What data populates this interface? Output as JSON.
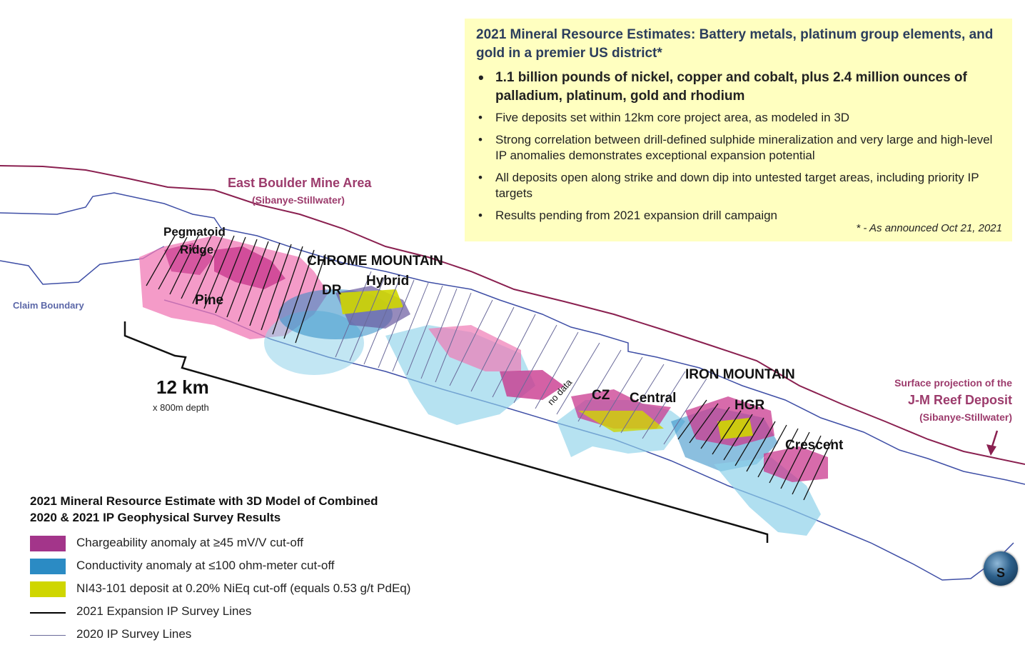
{
  "info_box": {
    "title": "2021 Mineral Resource Estimates:  Battery metals, platinum group elements, and gold in a premier US district*",
    "bullets": [
      {
        "text": "1.1 billion pounds of nickel, copper and cobalt, plus 2.4 million ounces of palladium, platinum, gold and rhodium",
        "emphasis": true
      },
      {
        "text": "Five deposits set within 12km core project area, as modeled in 3D",
        "emphasis": false
      },
      {
        "text": "Strong correlation between drill-defined sulphide mineralization and very large and high-level IP anomalies demonstrates exceptional expansion potential",
        "emphasis": false
      },
      {
        "text": "All deposits open along strike and down dip into untested target areas, including priority IP targets",
        "emphasis": false
      },
      {
        "text": "Results pending from 2021 expansion drill campaign",
        "emphasis": false
      }
    ],
    "footnote": "* - As announced Oct 21, 2021"
  },
  "map": {
    "east_boulder": {
      "title": "East Boulder Mine Area",
      "subtitle": "(Sibanye-Stillwater)"
    },
    "claim_boundary": "Claim Boundary",
    "deposits": {
      "pegmatoid_line1": "Pegmatoid",
      "pegmatoid_line2": "Ridge",
      "pine": "Pine",
      "dr": "DR",
      "hybrid": "Hybrid",
      "cz": "CZ",
      "central": "Central",
      "hgr": "HGR",
      "crescent": "Crescent"
    },
    "chrome_mountain": "CHROME MOUNTAIN",
    "iron_mountain": "IRON MOUNTAIN",
    "no_data": "no data",
    "scale": {
      "length": "12 km",
      "depth": "x 800m depth"
    },
    "jm_reef": {
      "line1": "Surface projection of the",
      "line2": "J-M Reef Deposit",
      "line3": "(Sibanye-Stillwater)"
    },
    "compass": "S"
  },
  "legend": {
    "title": "2021 Mineral Resource Estimate with 3D Model of Combined 2020 & 2021 IP Geophysical Survey Results",
    "items": [
      {
        "label": "Chargeability anomaly at ≥45 mV/V cut-off",
        "kind": "swatch",
        "color": "#a3358a"
      },
      {
        "label": "Conductivity anomaly at ≤100 ohm-meter cut-off",
        "kind": "swatch",
        "color": "#2b8bc4"
      },
      {
        "label": "NI43-101 deposit at 0.20% NiEq cut-off (equals 0.53 g/t PdEq)",
        "kind": "swatch",
        "color": "#cfd600"
      },
      {
        "label": "2021 Expansion IP Survey Lines",
        "kind": "line",
        "color": "#000000"
      },
      {
        "label": "2020 IP Survey Lines",
        "kind": "line",
        "color": "#6a6a9a"
      }
    ]
  },
  "colors": {
    "boundary_maroon": "#8a2050",
    "boundary_blue": "#3f4fa6",
    "chargeability_light": "#f07ab5",
    "conductivity_light": "#8fd2ea",
    "label_magenta": "#9c3b6c"
  }
}
